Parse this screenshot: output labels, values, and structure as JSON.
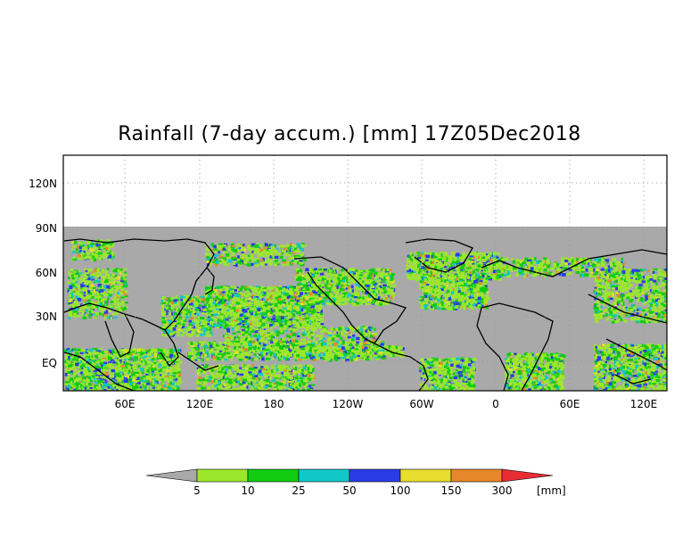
{
  "title": "Rainfall (7-day accum.) [mm] 17Z05Dec2018",
  "map": {
    "lat_labels": [
      "120N",
      "90N",
      "60N",
      "30N",
      "EQ"
    ],
    "lon_labels": [
      "60E",
      "120E",
      "180",
      "120W",
      "60W",
      "0",
      "60E",
      "120E"
    ],
    "background_color": "#a9a9a9",
    "land_outline_color": "#000000"
  },
  "colorbar": {
    "colors": [
      "#a9a9a9",
      "#9de62e",
      "#11cc11",
      "#12c7c7",
      "#2b3ce6",
      "#e6dd2f",
      "#e6882a",
      "#e82c34"
    ],
    "tick_labels": [
      "5",
      "10",
      "25",
      "50",
      "100",
      "150",
      "300"
    ],
    "unit": "[mm]"
  }
}
